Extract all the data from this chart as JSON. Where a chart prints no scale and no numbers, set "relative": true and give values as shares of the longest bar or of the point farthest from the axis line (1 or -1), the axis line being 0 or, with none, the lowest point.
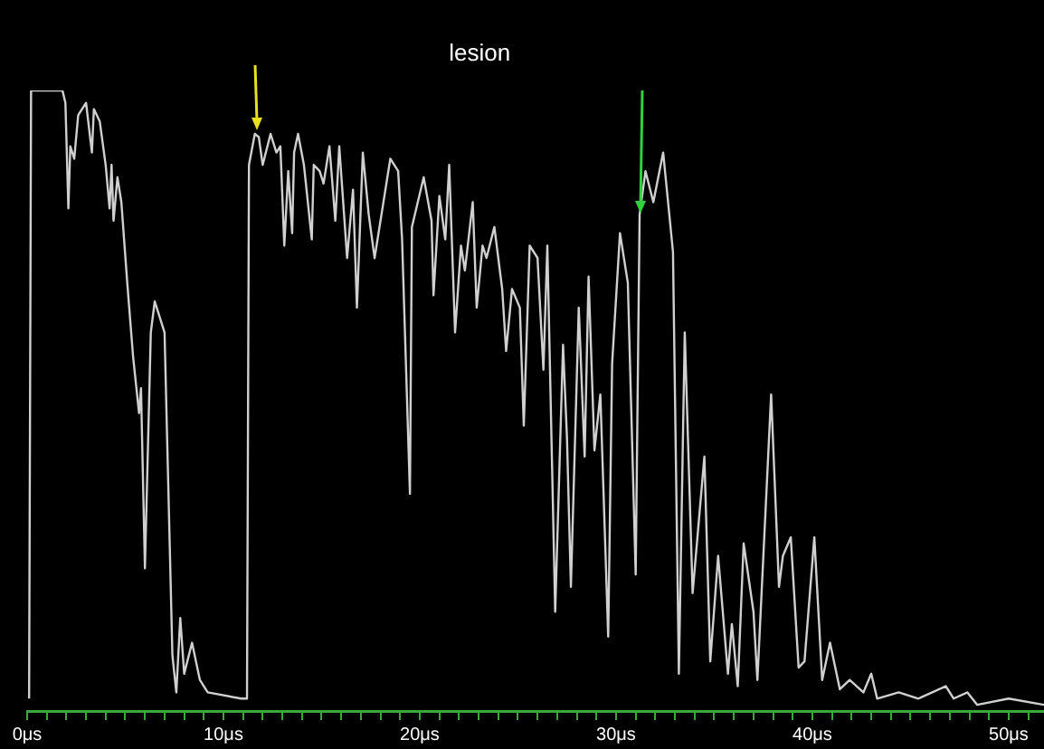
{
  "chart_data": {
    "type": "line",
    "title": "lesion",
    "relative": true,
    "legend": false,
    "grid": false,
    "marker": "none",
    "line_style": "solid",
    "xlim": [
      0,
      51.8
    ],
    "xticks": [
      {
        "value": 0,
        "label": "0μs"
      },
      {
        "value": 1,
        "label": null
      },
      {
        "value": 2,
        "label": null
      },
      {
        "value": 3,
        "label": null
      },
      {
        "value": 4,
        "label": null
      },
      {
        "value": 5,
        "label": null
      },
      {
        "value": 6,
        "label": null
      },
      {
        "value": 7,
        "label": null
      },
      {
        "value": 8,
        "label": null
      },
      {
        "value": 9,
        "label": null
      },
      {
        "value": 10,
        "label": "10μs"
      },
      {
        "value": 11,
        "label": null
      },
      {
        "value": 12,
        "label": null
      },
      {
        "value": 13,
        "label": null
      },
      {
        "value": 14,
        "label": null
      },
      {
        "value": 15,
        "label": null
      },
      {
        "value": 16,
        "label": null
      },
      {
        "value": 17,
        "label": null
      },
      {
        "value": 18,
        "label": null
      },
      {
        "value": 19,
        "label": null
      },
      {
        "value": 20,
        "label": "20μs"
      },
      {
        "value": 21,
        "label": null
      },
      {
        "value": 22,
        "label": null
      },
      {
        "value": 23,
        "label": null
      },
      {
        "value": 24,
        "label": null
      },
      {
        "value": 25,
        "label": null
      },
      {
        "value": 26,
        "label": null
      },
      {
        "value": 27,
        "label": null
      },
      {
        "value": 28,
        "label": null
      },
      {
        "value": 29,
        "label": null
      },
      {
        "value": 30,
        "label": "30μs"
      },
      {
        "value": 31,
        "label": null
      },
      {
        "value": 32,
        "label": null
      },
      {
        "value": 33,
        "label": null
      },
      {
        "value": 34,
        "label": null
      },
      {
        "value": 35,
        "label": null
      },
      {
        "value": 36,
        "label": null
      },
      {
        "value": 37,
        "label": null
      },
      {
        "value": 38,
        "label": null
      },
      {
        "value": 39,
        "label": null
      },
      {
        "value": 40,
        "label": "40μs"
      },
      {
        "value": 41,
        "label": null
      },
      {
        "value": 42,
        "label": null
      },
      {
        "value": 43,
        "label": null
      },
      {
        "value": 44,
        "label": null
      },
      {
        "value": 45,
        "label": null
      },
      {
        "value": 46,
        "label": null
      },
      {
        "value": 47,
        "label": null
      },
      {
        "value": 48,
        "label": null
      },
      {
        "value": 49,
        "label": null
      },
      {
        "value": 50,
        "label": "50μs"
      },
      {
        "value": 51,
        "label": null
      }
    ],
    "series": [
      {
        "color": "#d0d0d0",
        "x": [
          0.1,
          0.2,
          1.8,
          1.95,
          2.1,
          2.2,
          2.4,
          2.6,
          3.0,
          3.3,
          3.4,
          3.7,
          4.0,
          4.2,
          4.3,
          4.4,
          4.6,
          4.8,
          5.1,
          5.4,
          5.7,
          5.8,
          6.0,
          6.3,
          6.5,
          6.7,
          7.0,
          7.4,
          7.6,
          7.8,
          8.0,
          8.4,
          8.8,
          9.2,
          10.9,
          11.2,
          11.3,
          11.6,
          11.8,
          12.0,
          12.4,
          12.7,
          12.9,
          13.1,
          13.3,
          13.5,
          13.6,
          13.8,
          14.1,
          14.5,
          14.6,
          14.9,
          15.1,
          15.4,
          15.7,
          15.9,
          16.3,
          16.6,
          16.8,
          17.1,
          17.4,
          17.7,
          18.2,
          18.5,
          18.9,
          19.1,
          19.5,
          19.6,
          20.2,
          20.6,
          20.7,
          21.0,
          21.3,
          21.5,
          21.8,
          22.1,
          22.3,
          22.7,
          22.9,
          23.2,
          23.4,
          23.8,
          24.2,
          24.4,
          24.7,
          25.1,
          25.3,
          25.6,
          26.0,
          26.3,
          26.5,
          26.9,
          27.3,
          27.5,
          27.7,
          28.1,
          28.4,
          28.6,
          28.9,
          29.2,
          29.6,
          29.8,
          30.2,
          30.6,
          31.0,
          31.2,
          31.5,
          31.9,
          32.4,
          32.9,
          33.2,
          33.5,
          33.9,
          34.5,
          34.8,
          35.2,
          35.7,
          35.9,
          36.2,
          36.5,
          37.0,
          37.2,
          37.9,
          38.3,
          38.5,
          38.9,
          39.3,
          39.6,
          40.1,
          40.5,
          40.9,
          41.4,
          41.9,
          42.6,
          43.0,
          43.3,
          44.4,
          45.4,
          46.8,
          47.2,
          47.9,
          48.4,
          50.0,
          51.8
        ],
        "values": [
          0.02,
          1,
          1,
          0.98,
          0.81,
          0.91,
          0.89,
          0.96,
          0.98,
          0.9,
          0.97,
          0.95,
          0.88,
          0.81,
          0.88,
          0.79,
          0.86,
          0.82,
          0.69,
          0.57,
          0.48,
          0.52,
          0.23,
          0.61,
          0.66,
          0.64,
          0.61,
          0.09,
          0.03,
          0.15,
          0.06,
          0.11,
          0.05,
          0.03,
          0.02,
          0.02,
          0.88,
          0.93,
          0.925,
          0.88,
          0.93,
          0.9,
          0.91,
          0.75,
          0.87,
          0.77,
          0.9,
          0.93,
          0.88,
          0.76,
          0.88,
          0.87,
          0.85,
          0.91,
          0.79,
          0.91,
          0.73,
          0.84,
          0.65,
          0.9,
          0.8,
          0.73,
          0.83,
          0.89,
          0.87,
          0.76,
          0.35,
          0.78,
          0.86,
          0.79,
          0.67,
          0.83,
          0.76,
          0.88,
          0.61,
          0.75,
          0.71,
          0.82,
          0.65,
          0.75,
          0.73,
          0.78,
          0.68,
          0.58,
          0.68,
          0.65,
          0.46,
          0.75,
          0.73,
          0.55,
          0.75,
          0.16,
          0.59,
          0.44,
          0.2,
          0.65,
          0.41,
          0.7,
          0.42,
          0.51,
          0.12,
          0.56,
          0.77,
          0.69,
          0.22,
          0.8,
          0.87,
          0.82,
          0.9,
          0.74,
          0.06,
          0.61,
          0.19,
          0.41,
          0.08,
          0.25,
          0.06,
          0.14,
          0.04,
          0.27,
          0.16,
          0.05,
          0.51,
          0.2,
          0.25,
          0.28,
          0.07,
          0.08,
          0.28,
          0.05,
          0.11,
          0.035,
          0.05,
          0.03,
          0.06,
          0.02,
          0.03,
          0.02,
          0.04,
          0.02,
          0.03,
          0.01,
          0.02,
          0.01
        ]
      }
    ]
  }
}
